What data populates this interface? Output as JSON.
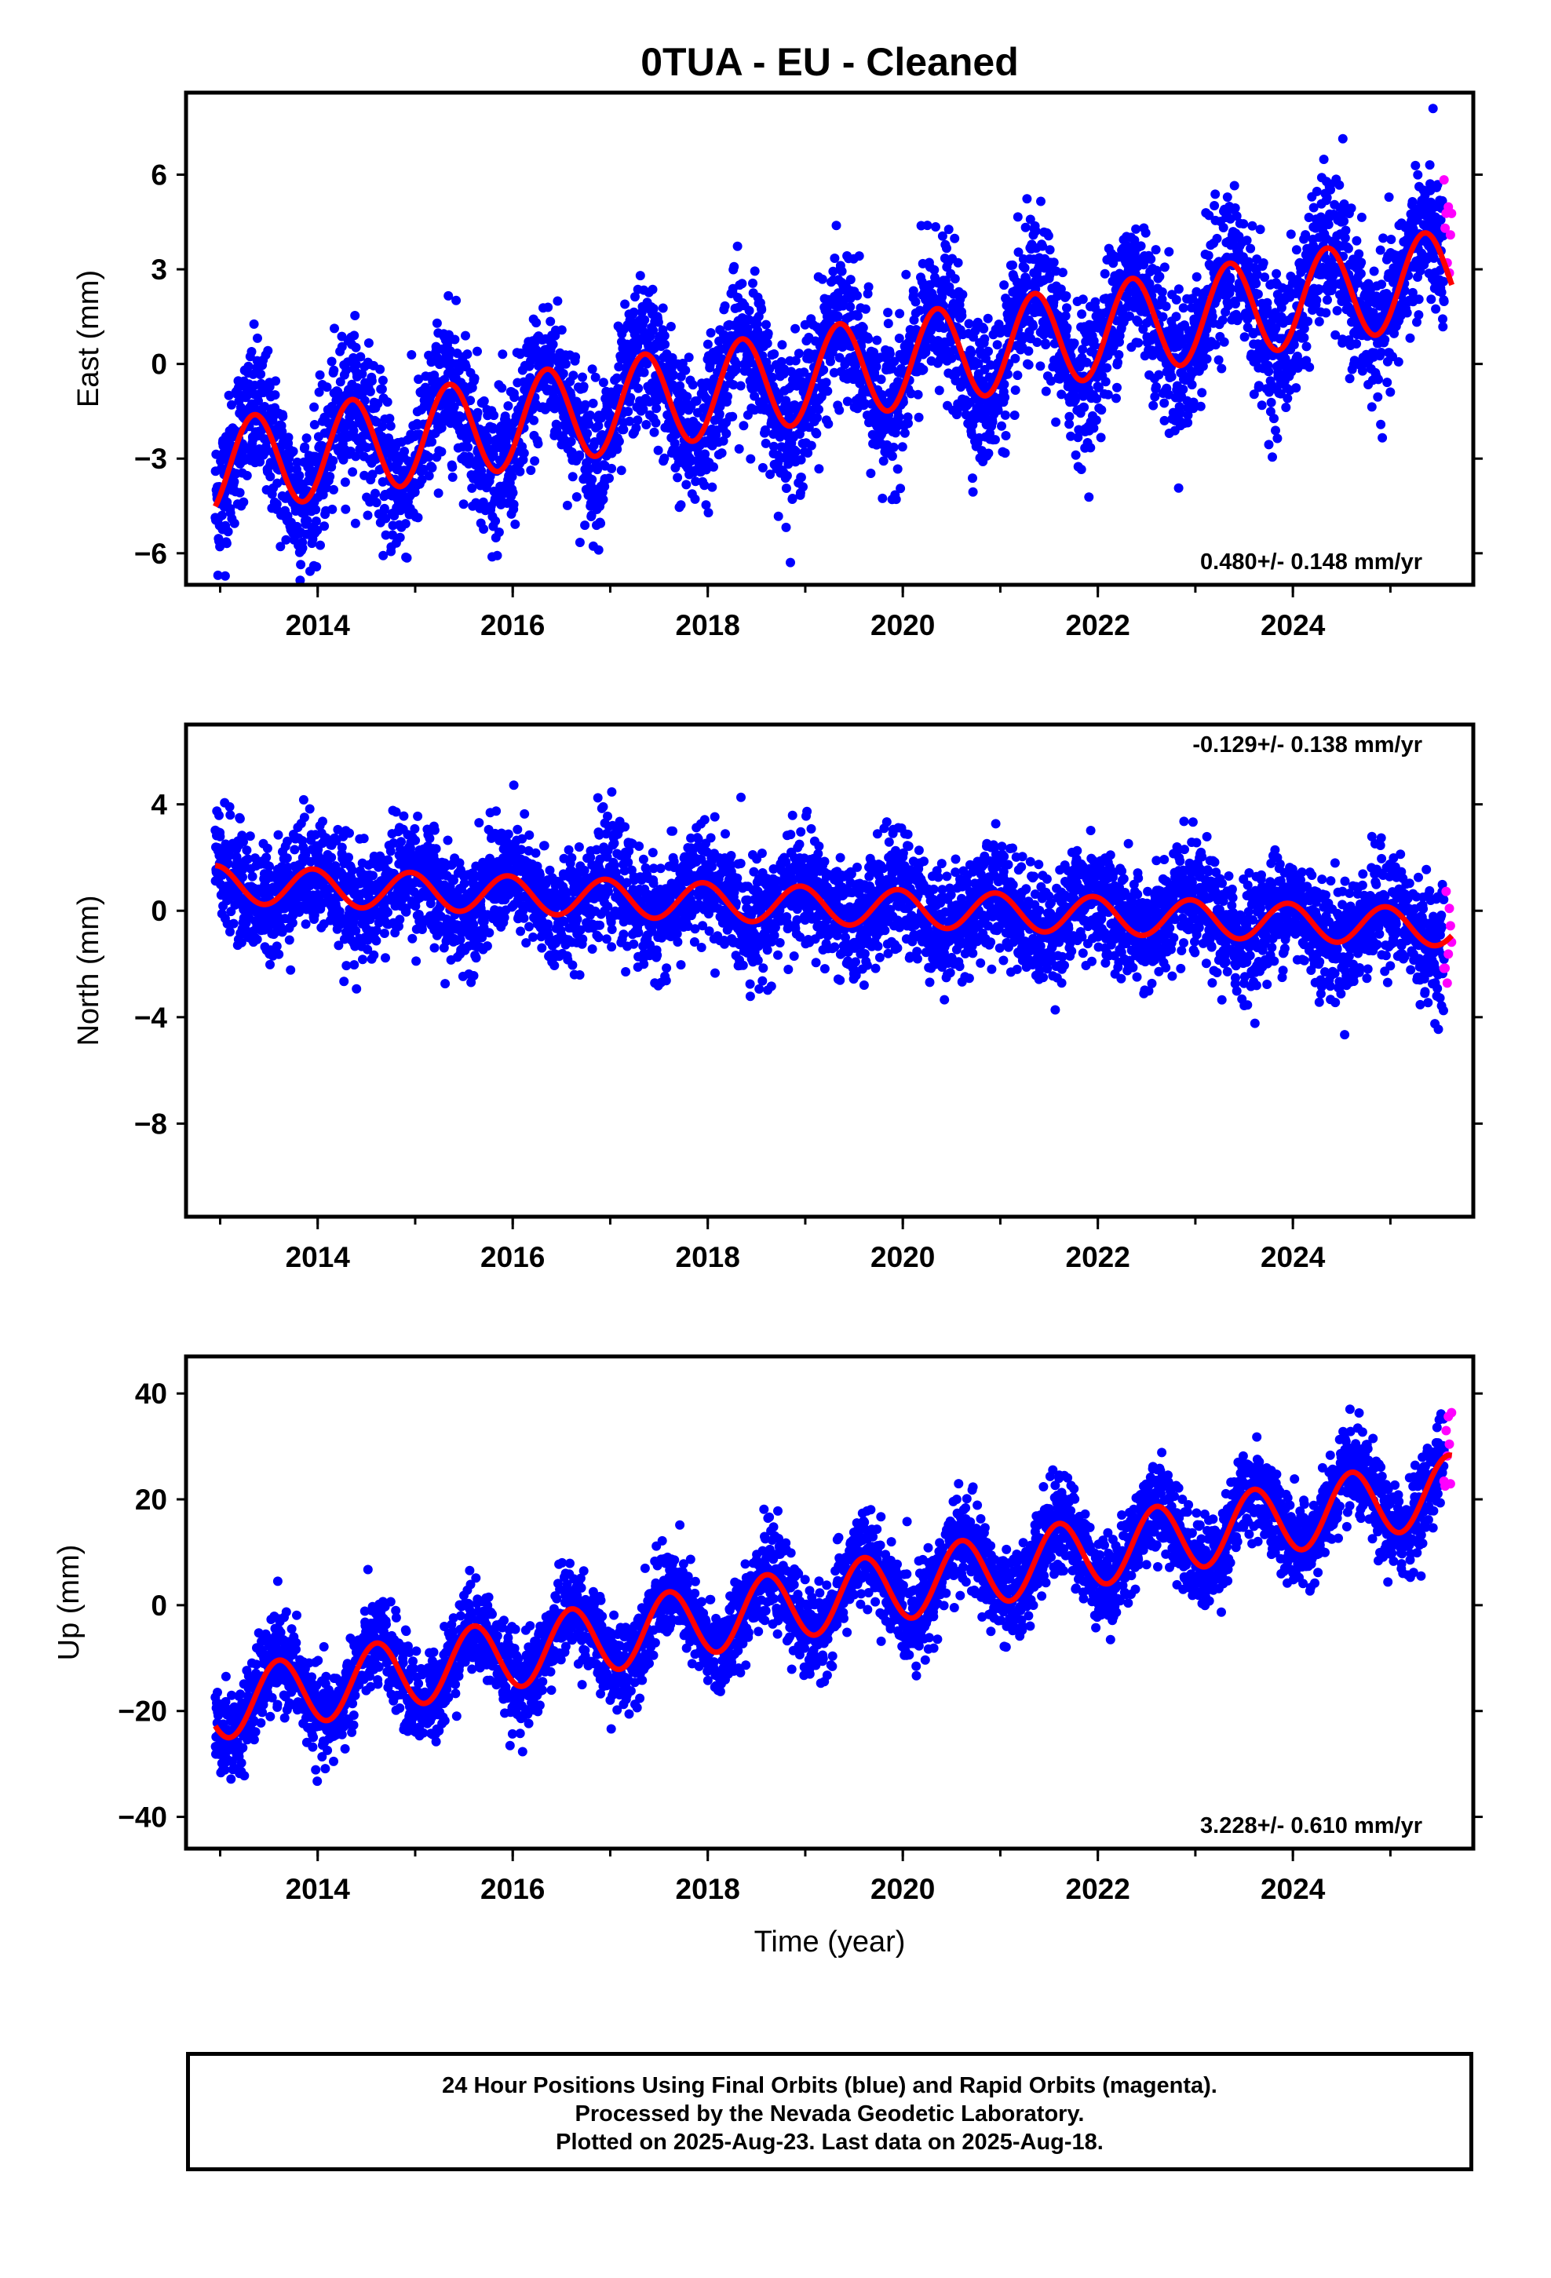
{
  "chart_data": {
    "type": "scatter",
    "title": "0TUA  - EU - Cleaned",
    "xlabel": "Time (year)",
    "x_ticks": [
      "2014",
      "2016",
      "2018",
      "2020",
      "2022",
      "2024"
    ],
    "xlim": [
      2012.65,
      2025.85
    ],
    "data_start": 2012.95,
    "data_end": 2025.63,
    "rapid_start": 2025.55,
    "series_colors": {
      "final": "#0000ff",
      "rapid": "#ff00ff",
      "model": "#ff0000"
    },
    "panels": [
      {
        "id": "east",
        "ylabel": "East (mm)",
        "ylim": [
          -7,
          8.6
        ],
        "y_ticks": [
          -6,
          -3,
          0,
          3,
          6
        ],
        "rate": "0.480+/- 0.148 mm/yr",
        "rate_position": "bottom-right",
        "model": {
          "start": -3.3,
          "slope": 0.48,
          "seasonal_amp": 1.5,
          "phase_year": 2013.35
        },
        "scatter_sd": 1.15
      },
      {
        "id": "north",
        "ylabel": "North (mm)",
        "ylim": [
          -11.5,
          7
        ],
        "y_ticks": [
          -8,
          -4,
          0,
          4
        ],
        "rate": "-0.129+/- 0.138 mm/yr",
        "rate_position": "top-right",
        "model": {
          "start": 1.0,
          "slope": -0.129,
          "seasonal_amp": 0.7,
          "phase_year": 2012.95
        },
        "scatter_sd": 1.05
      },
      {
        "id": "up",
        "ylabel": "Up (mm)",
        "ylim": [
          -46,
          47
        ],
        "y_ticks": [
          -40,
          -20,
          0,
          20,
          40
        ],
        "rate": "3.228+/- 0.610 mm/yr",
        "rate_position": "bottom-right",
        "model": {
          "start": -19,
          "slope": 3.228,
          "seasonal_amp": 6.5,
          "phase_year": 2013.6
        },
        "scatter_sd": 4.2
      }
    ]
  },
  "footer": {
    "line1": "24 Hour Positions Using Final Orbits (blue) and Rapid Orbits (magenta).",
    "line2": "Processed by the Nevada Geodetic Laboratory.",
    "line3": "Plotted on 2025-Aug-23. Last data on 2025-Aug-18."
  }
}
